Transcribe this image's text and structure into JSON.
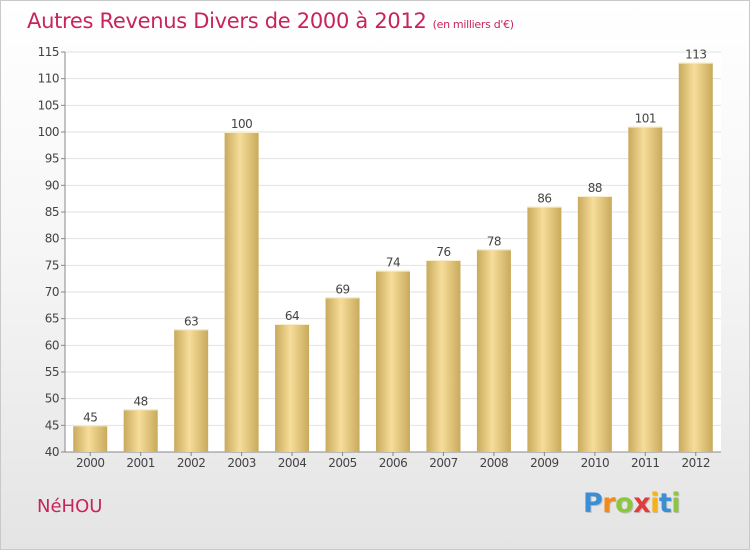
{
  "header": {
    "title": "Autres Revenus Divers de 2000 à 2012",
    "subtitle": "(en milliers d'€)"
  },
  "footer": {
    "place": "NéHOU"
  },
  "logo": {
    "letters": [
      "P",
      "r",
      "o",
      "x",
      "i",
      "t",
      "i"
    ],
    "colors": [
      "#3a8fd4",
      "#f08a1c",
      "#8cc63f",
      "#e23b3b",
      "#f2b31b",
      "#3a8fd4",
      "#8cc63f"
    ]
  },
  "colors": {
    "bar_light": "#f6dd9a",
    "bar_dark": "#c9aa5c",
    "grid": "#e2e2e2",
    "axis": "#888888",
    "text": "#444444"
  },
  "chart_data": {
    "type": "bar",
    "categories": [
      "2000",
      "2001",
      "2002",
      "2003",
      "2004",
      "2005",
      "2006",
      "2007",
      "2008",
      "2009",
      "2010",
      "2011",
      "2012"
    ],
    "values": [
      45,
      48,
      63,
      100,
      64,
      69,
      74,
      76,
      78,
      86,
      88,
      101,
      113
    ],
    "ylim": [
      40,
      115
    ],
    "yticks": [
      40,
      45,
      50,
      55,
      60,
      65,
      70,
      75,
      80,
      85,
      90,
      95,
      100,
      105,
      110,
      115
    ],
    "grid": true,
    "title": "Autres Revenus Divers de 2000 à 2012",
    "xlabel": "",
    "ylabel": ""
  }
}
